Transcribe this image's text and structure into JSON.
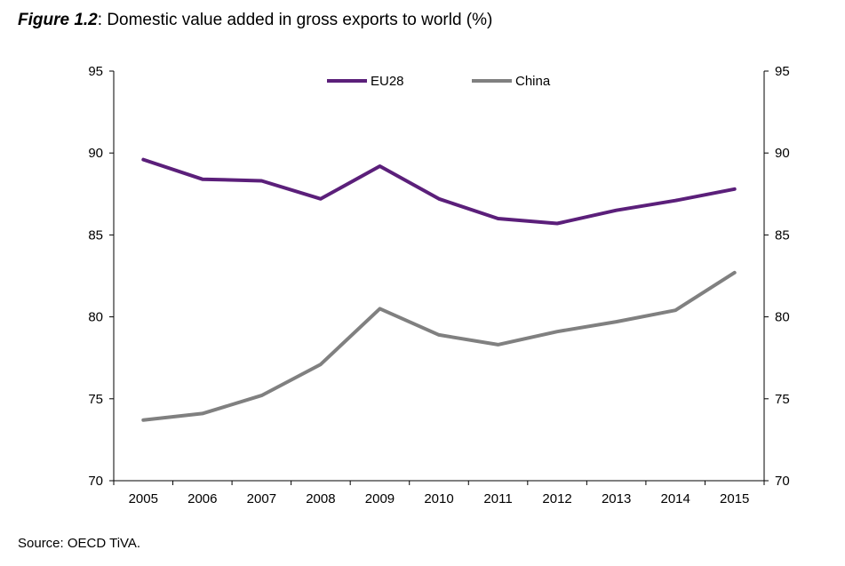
{
  "figure": {
    "label": "Figure 1.2",
    "separator": ": ",
    "title": "Domestic value added in gross exports to world (%)"
  },
  "source": "Source: OECD TiVA.",
  "chart_data": {
    "type": "line",
    "categories": [
      "2005",
      "2006",
      "2007",
      "2008",
      "2009",
      "2010",
      "2011",
      "2012",
      "2013",
      "2014",
      "2015"
    ],
    "series": [
      {
        "name": "EU28",
        "color": "#5b1f7a",
        "values": [
          89.6,
          88.4,
          88.3,
          87.2,
          89.2,
          87.2,
          86.0,
          85.7,
          86.5,
          87.1,
          87.8
        ]
      },
      {
        "name": "China",
        "color": "#808080",
        "values": [
          73.7,
          74.1,
          75.2,
          77.1,
          80.5,
          78.9,
          78.3,
          79.1,
          79.7,
          80.4,
          82.7
        ]
      }
    ],
    "ylim": [
      70,
      95
    ],
    "yticks": [
      70,
      75,
      80,
      85,
      90,
      95
    ],
    "secondary_y_axis": true,
    "legend_position": "top-center",
    "grid": false
  }
}
